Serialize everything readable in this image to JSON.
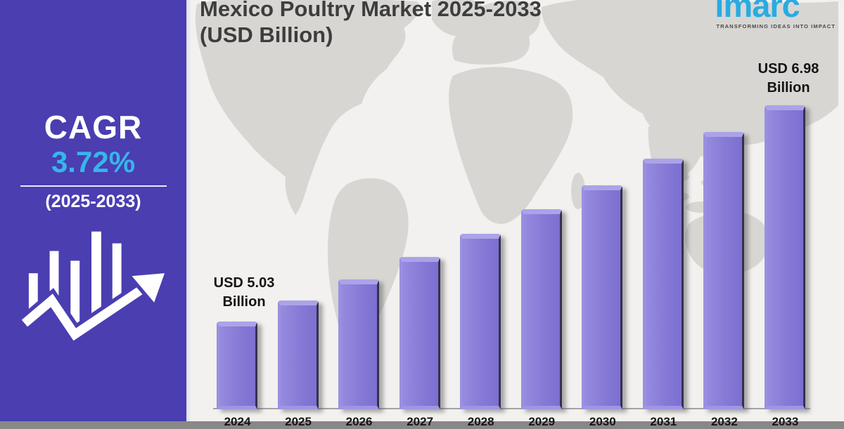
{
  "header": {
    "title_line1": "Mexico Poultry Market 2025-2033",
    "title_line2": "(USD Billion)"
  },
  "logo": {
    "brand": "imarc",
    "tagline": "TRANSFORMING IDEAS INTO IMPACT",
    "brand_color": "#29abe2"
  },
  "sidebar": {
    "cagr_label": "CAGR",
    "cagr_value": "3.72%",
    "period": "(2025-2033)",
    "background_color": "#4a3eb1",
    "value_color": "#38b5ea",
    "icon": "growth-bar-chart-arrow-icon"
  },
  "chart_data": {
    "type": "bar",
    "title": "Mexico Poultry Market 2025-2033 (USD Billion)",
    "categories": [
      "2024",
      "2025",
      "2026",
      "2027",
      "2028",
      "2029",
      "2030",
      "2031",
      "2032",
      "2033"
    ],
    "values": [
      5.03,
      5.22,
      5.41,
      5.61,
      5.82,
      6.04,
      6.26,
      6.5,
      6.74,
      6.98
    ],
    "unit": "USD Billion",
    "cagr_percent": 3.72,
    "cagr_period": "2025-2033",
    "xlabel": "",
    "ylabel": "",
    "grid": false,
    "legend": false,
    "baseline_note": "y-axis does not start at zero; only first and last bars are labeled",
    "bar_color": "#877bd7",
    "annotations": {
      "first": {
        "line1": "USD 5.03",
        "line2": "Billion",
        "year": "2024"
      },
      "last": {
        "line1": "USD 6.98",
        "line2": "Billion",
        "year": "2033"
      }
    },
    "background": "world-map-silhouette"
  }
}
